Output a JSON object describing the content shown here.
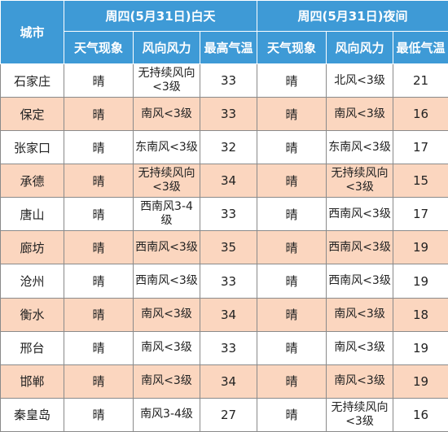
{
  "header": {
    "city": "城市",
    "day_group": "周四(5月31日)白天",
    "night_group": "周四(5月31日)夜间",
    "day_weather": "天气现象",
    "day_wind": "风向风力",
    "day_temp": "最高气温",
    "night_weather": "天气现象",
    "night_wind": "风向风力",
    "night_temp": "最低气温"
  },
  "rows": [
    {
      "city": "石家庄",
      "day_weather": "晴",
      "day_wind": "无持续风向<3级",
      "high": "33",
      "night_weather": "晴",
      "night_wind": "北风<3级",
      "low": "21"
    },
    {
      "city": "保定",
      "day_weather": "晴",
      "day_wind": "南风<3级",
      "high": "33",
      "night_weather": "晴",
      "night_wind": "南风<3级",
      "low": "16"
    },
    {
      "city": "张家口",
      "day_weather": "晴",
      "day_wind": "东南风<3级",
      "high": "32",
      "night_weather": "晴",
      "night_wind": "东南风<3级",
      "low": "17"
    },
    {
      "city": "承德",
      "day_weather": "晴",
      "day_wind": "无持续风向<3级",
      "high": "34",
      "night_weather": "晴",
      "night_wind": "无持续风向<3级",
      "low": "15"
    },
    {
      "city": "唐山",
      "day_weather": "晴",
      "day_wind": "西南风3-4级",
      "high": "33",
      "night_weather": "晴",
      "night_wind": "西南风<3级",
      "low": "17"
    },
    {
      "city": "廊坊",
      "day_weather": "晴",
      "day_wind": "西南风<3级",
      "high": "35",
      "night_weather": "晴",
      "night_wind": "西南风<3级",
      "low": "19"
    },
    {
      "city": "沧州",
      "day_weather": "晴",
      "day_wind": "西南风<3级",
      "high": "33",
      "night_weather": "晴",
      "night_wind": "西南风<3级",
      "low": "19"
    },
    {
      "city": "衡水",
      "day_weather": "晴",
      "day_wind": "南风<3级",
      "high": "34",
      "night_weather": "晴",
      "night_wind": "南风<3级",
      "low": "18"
    },
    {
      "city": "邢台",
      "day_weather": "晴",
      "day_wind": "南风<3级",
      "high": "33",
      "night_weather": "晴",
      "night_wind": "南风<3级",
      "low": "19"
    },
    {
      "city": "邯郸",
      "day_weather": "晴",
      "day_wind": "南风<3级",
      "high": "34",
      "night_weather": "晴",
      "night_wind": "南风<3级",
      "low": "19"
    },
    {
      "city": "秦皇岛",
      "day_weather": "晴",
      "day_wind": "南风3-4级",
      "high": "27",
      "night_weather": "晴",
      "night_wind": "无持续风向<3级",
      "low": "16"
    }
  ],
  "colors": {
    "header_bg": "#3e9ad6",
    "alt_row_bg": "#fbd6bf",
    "row_bg": "#ffffff"
  }
}
